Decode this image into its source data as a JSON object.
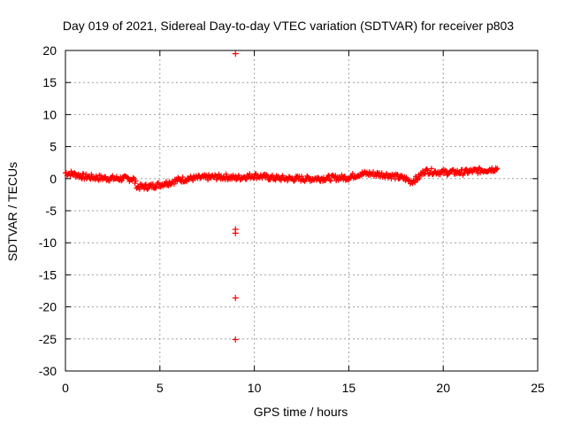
{
  "chart_data": {
    "type": "scatter",
    "title": "Day 019 of 2021, Sidereal Day-to-day VTEC variation (SDTVAR) for receiver p803",
    "xlabel": "GPS time / hours",
    "ylabel": "SDTVAR / TECUs",
    "xlim": [
      0,
      25
    ],
    "ylim": [
      -30,
      20
    ],
    "xticks": [
      0,
      5,
      10,
      15,
      20,
      25
    ],
    "yticks": [
      -30,
      -25,
      -20,
      -15,
      -10,
      -5,
      0,
      5,
      10,
      15,
      20
    ],
    "grid": true,
    "marker": "+",
    "color": "#ff0000",
    "series": [
      {
        "name": "SDTVAR",
        "trend": [
          [
            0.0,
            0.9
          ],
          [
            0.3,
            0.8
          ],
          [
            0.6,
            0.6
          ],
          [
            1.0,
            0.3
          ],
          [
            2.0,
            0.1
          ],
          [
            3.0,
            0.0
          ],
          [
            3.6,
            0.0
          ],
          [
            3.8,
            -1.3
          ],
          [
            4.5,
            -1.2
          ],
          [
            5.5,
            -0.6
          ],
          [
            6.0,
            -0.2
          ],
          [
            6.5,
            0.0
          ],
          [
            7.5,
            0.2
          ],
          [
            8.5,
            0.3
          ],
          [
            9.0,
            0.1
          ],
          [
            9.5,
            0.3
          ],
          [
            10.0,
            0.5
          ],
          [
            11.0,
            0.1
          ],
          [
            12.0,
            0.0
          ],
          [
            13.0,
            0.0
          ],
          [
            14.0,
            0.1
          ],
          [
            15.0,
            0.2
          ],
          [
            15.5,
            0.7
          ],
          [
            16.0,
            0.8
          ],
          [
            17.0,
            0.6
          ],
          [
            17.5,
            0.3
          ],
          [
            18.0,
            0.0
          ],
          [
            18.3,
            -0.5
          ],
          [
            18.7,
            0.2
          ],
          [
            19.0,
            1.2
          ],
          [
            20.0,
            1.0
          ],
          [
            21.0,
            1.0
          ],
          [
            22.0,
            1.3
          ],
          [
            22.9,
            1.6
          ]
        ],
        "outliers": [
          [
            9.0,
            19.5
          ],
          [
            9.0,
            -7.9
          ],
          [
            9.0,
            -8.5
          ],
          [
            9.0,
            -18.6
          ],
          [
            9.0,
            -25.1
          ]
        ]
      }
    ]
  }
}
